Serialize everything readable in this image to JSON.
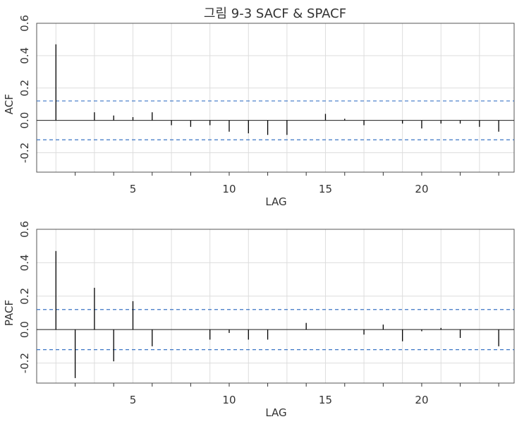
{
  "title": "그림 9-3 SACF & SPACF",
  "colors": {
    "background": "#ffffff",
    "grid": "#dddddd",
    "bars": "#000000",
    "confidence_band": "#3a74c5",
    "frame": "#555555"
  },
  "chart_data": [
    {
      "type": "bar",
      "name": "acf-panel",
      "title": "",
      "xlabel": "LAG",
      "ylabel": "ACF",
      "xlim": [
        0,
        24.8
      ],
      "ylim": [
        -0.32,
        0.6
      ],
      "x_ticks": [
        5,
        10,
        15,
        20
      ],
      "y_ticks": [
        -0.2,
        0.0,
        0.2,
        0.4,
        0.6
      ],
      "y_tick_labels": [
        "-0.2",
        "0.0",
        "0.2",
        "0.4",
        "0.6"
      ],
      "grid": true,
      "confidence_band": [
        -0.12,
        0.12
      ],
      "series": [
        {
          "lags": [
            1,
            2,
            3,
            4,
            5,
            6,
            7,
            8,
            9,
            10,
            11,
            12,
            13,
            14,
            15,
            16,
            17,
            18,
            19,
            20,
            21,
            22,
            23,
            24
          ],
          "values": [
            0.47,
            0.0,
            0.05,
            0.03,
            0.02,
            0.05,
            -0.03,
            -0.04,
            -0.03,
            -0.07,
            -0.08,
            -0.09,
            -0.09,
            0.0,
            0.04,
            0.01,
            -0.03,
            0.0,
            -0.02,
            -0.05,
            -0.02,
            -0.02,
            -0.04,
            -0.07
          ]
        }
      ]
    },
    {
      "type": "bar",
      "name": "pacf-panel",
      "title": "",
      "xlabel": "LAG",
      "ylabel": "PACF",
      "xlim": [
        0,
        24.8
      ],
      "ylim": [
        -0.32,
        0.6
      ],
      "x_ticks": [
        5,
        10,
        15,
        20
      ],
      "y_ticks": [
        -0.2,
        0.0,
        0.2,
        0.4,
        0.6
      ],
      "y_tick_labels": [
        "-0.2",
        "0.0",
        "0.2",
        "0.4",
        "0.6"
      ],
      "grid": true,
      "confidence_band": [
        -0.12,
        0.12
      ],
      "series": [
        {
          "lags": [
            1,
            2,
            3,
            4,
            5,
            6,
            7,
            8,
            9,
            10,
            11,
            12,
            13,
            14,
            15,
            16,
            17,
            18,
            19,
            20,
            21,
            22,
            23,
            24
          ],
          "values": [
            0.47,
            -0.29,
            0.25,
            -0.19,
            0.17,
            -0.1,
            0.0,
            0.0,
            -0.06,
            -0.02,
            -0.06,
            -0.06,
            0.0,
            0.04,
            0.0,
            0.0,
            -0.03,
            0.03,
            -0.07,
            -0.01,
            0.01,
            -0.05,
            0.0,
            -0.1
          ]
        }
      ]
    }
  ]
}
